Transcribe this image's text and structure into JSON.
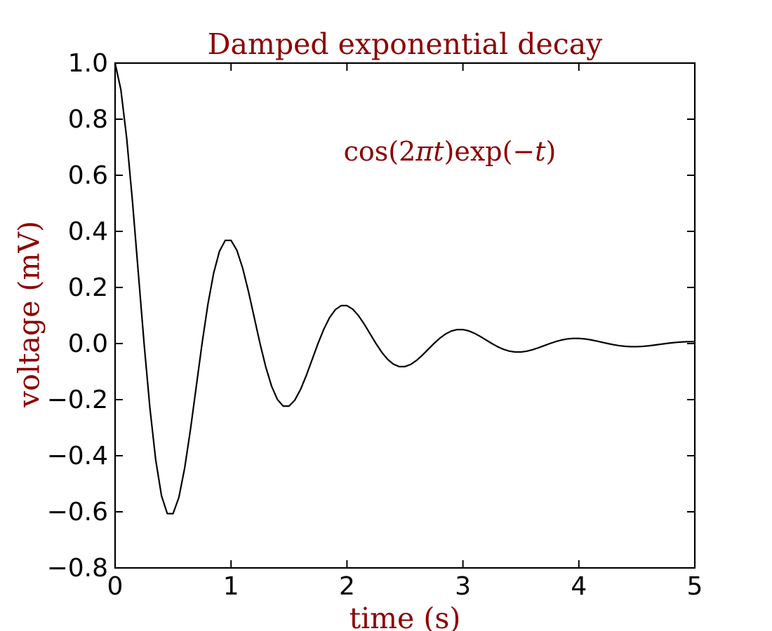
{
  "figure": {
    "colors": {
      "accent": "#8b0000",
      "line": "#000000",
      "background": "#ffffff"
    },
    "annotation": {
      "text": "cos(2πt)exp(−t)",
      "parts": [
        {
          "text": "cos(2",
          "italic": false
        },
        {
          "text": "πt",
          "italic": true
        },
        {
          "text": ")exp(−",
          "italic": false
        },
        {
          "text": "t",
          "italic": true
        },
        {
          "text": ")",
          "italic": false
        }
      ]
    }
  },
  "chart_data": {
    "type": "line",
    "title": "Damped exponential decay",
    "xlabel": "time (s)",
    "ylabel": "voltage (mV)",
    "xlim": [
      0,
      5
    ],
    "ylim": [
      -0.8,
      1.0
    ],
    "grid": false,
    "legend": null,
    "xticks": [
      0,
      1,
      2,
      3,
      4,
      5
    ],
    "xtick_labels": [
      "0",
      "1",
      "2",
      "3",
      "4",
      "5"
    ],
    "yticks": [
      1.0,
      0.8,
      0.6,
      0.4,
      0.2,
      0.0,
      -0.2,
      -0.4,
      -0.6,
      -0.8
    ],
    "ytick_labels": [
      "1.0",
      "0.8",
      "0.6",
      "0.4",
      "0.2",
      "0.0",
      "−0.2",
      "−0.4",
      "−0.6",
      "−0.8"
    ],
    "annotation_text": "cos(2πt)exp(−t)",
    "series": [
      {
        "name": "cos(2πt)exp(−t)",
        "x": [
          0.0,
          0.05,
          0.1,
          0.15,
          0.2,
          0.25,
          0.3,
          0.35,
          0.4,
          0.45,
          0.5,
          0.55,
          0.6,
          0.65,
          0.7,
          0.75,
          0.8,
          0.85,
          0.9,
          0.95,
          1.0,
          1.05,
          1.1,
          1.15,
          1.2,
          1.25,
          1.3,
          1.35,
          1.4,
          1.45,
          1.5,
          1.55,
          1.6,
          1.65,
          1.7,
          1.75,
          1.8,
          1.85,
          1.9,
          1.95,
          2.0,
          2.05,
          2.1,
          2.15,
          2.2,
          2.25,
          2.3,
          2.35,
          2.4,
          2.45,
          2.5,
          2.55,
          2.6,
          2.65,
          2.7,
          2.75,
          2.8,
          2.85,
          2.9,
          2.95,
          3.0,
          3.05,
          3.1,
          3.15,
          3.2,
          3.25,
          3.3,
          3.35,
          3.4,
          3.45,
          3.5,
          3.55,
          3.6,
          3.65,
          3.7,
          3.75,
          3.8,
          3.85,
          3.9,
          3.95,
          4.0,
          4.05,
          4.1,
          4.15,
          4.2,
          4.25,
          4.3,
          4.35,
          4.4,
          4.45,
          4.5,
          4.55,
          4.6,
          4.65,
          4.7,
          4.75,
          4.8,
          4.85,
          4.9,
          4.95,
          5.0
        ],
        "y": [
          1.0,
          0.9046,
          0.732,
          0.5059,
          0.253,
          0.0,
          -0.2289,
          -0.4142,
          -0.5423,
          -0.6064,
          -0.6065,
          -0.5487,
          -0.444,
          -0.3068,
          -0.1534,
          0.0,
          0.1388,
          0.2512,
          0.3289,
          0.3678,
          0.3679,
          0.3328,
          0.2693,
          0.1861,
          0.0931,
          0.0,
          -0.0842,
          -0.1524,
          -0.1995,
          -0.2231,
          -0.2231,
          -0.2018,
          -0.1633,
          -0.1129,
          -0.0565,
          0.0,
          0.0511,
          0.0924,
          0.121,
          0.1353,
          0.1353,
          0.1224,
          0.0991,
          0.0685,
          0.0342,
          0.0,
          -0.031,
          -0.0561,
          -0.0734,
          -0.0821,
          -0.0821,
          -0.0743,
          -0.0601,
          -0.0416,
          -0.0208,
          0.0,
          0.0188,
          0.034,
          0.0445,
          0.0497,
          0.0498,
          0.0451,
          0.0364,
          0.0252,
          0.0126,
          0.0,
          -0.0114,
          -0.0206,
          -0.027,
          -0.0302,
          -0.0302,
          -0.0273,
          -0.0221,
          -0.0153,
          -0.0076,
          0.0,
          0.0069,
          0.0125,
          0.0164,
          0.0183,
          0.0183,
          0.0166,
          0.0134,
          0.0093,
          0.0046,
          0.0,
          -0.0042,
          -0.0076,
          -0.01,
          -0.0111,
          -0.0111,
          -0.0101,
          -0.0081,
          -0.0056,
          -0.0028,
          0.0,
          0.0025,
          0.0046,
          0.006,
          0.0067,
          0.0067
        ]
      }
    ]
  }
}
